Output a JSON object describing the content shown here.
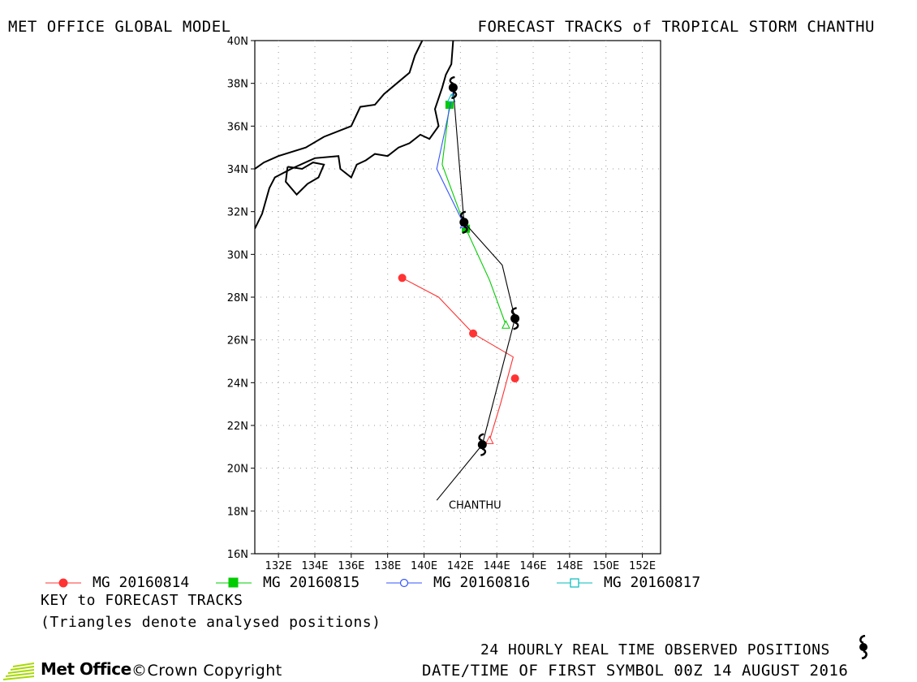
{
  "header": {
    "left_title": "MET OFFICE GLOBAL MODEL",
    "right_title": "FORECAST TRACKS of TROPICAL STORM CHANTHU"
  },
  "map": {
    "lon_range": [
      130.7,
      153.0
    ],
    "lat_range": [
      16,
      40
    ],
    "lon_ticks": [
      "132E",
      "134E",
      "136E",
      "138E",
      "140E",
      "142E",
      "144E",
      "146E",
      "148E",
      "150E",
      "152E"
    ],
    "lon_tick_values": [
      132,
      134,
      136,
      138,
      140,
      142,
      144,
      146,
      148,
      150,
      152
    ],
    "lat_ticks": [
      "16N",
      "18N",
      "20N",
      "22N",
      "24N",
      "26N",
      "28N",
      "30N",
      "32N",
      "34N",
      "36N",
      "38N",
      "40N"
    ],
    "lat_tick_values": [
      16,
      18,
      20,
      22,
      24,
      26,
      28,
      30,
      32,
      34,
      36,
      38,
      40
    ],
    "grid": "dotted",
    "storm_label": "CHANTHU",
    "storm_label_position": [
      142.8,
      18.1
    ],
    "observed_track": [
      [
        140.7,
        18.5
      ],
      [
        143.2,
        21.1
      ],
      [
        145.0,
        27.0
      ],
      [
        144.3,
        29.5
      ],
      [
        142.2,
        31.5
      ],
      [
        141.6,
        37.8
      ]
    ],
    "observed_positions": [
      [
        143.2,
        21.1
      ],
      [
        145.0,
        27.0
      ],
      [
        142.2,
        31.5
      ],
      [
        141.6,
        37.8
      ]
    ],
    "land_coast": [
      [
        [
          130.7,
          31.2
        ],
        [
          131.1,
          31.9
        ],
        [
          131.5,
          33.1
        ],
        [
          131.8,
          33.6
        ],
        [
          132.7,
          34.0
        ],
        [
          134.0,
          34.5
        ],
        [
          135.3,
          34.6
        ],
        [
          135.4,
          34.0
        ],
        [
          136.0,
          33.6
        ],
        [
          136.3,
          34.2
        ],
        [
          136.8,
          34.4
        ],
        [
          137.3,
          34.7
        ],
        [
          138.0,
          34.6
        ],
        [
          138.6,
          35.0
        ],
        [
          139.2,
          35.2
        ],
        [
          139.8,
          35.6
        ],
        [
          140.3,
          35.4
        ],
        [
          140.8,
          36.0
        ],
        [
          140.6,
          36.8
        ],
        [
          141.0,
          37.8
        ],
        [
          141.2,
          38.4
        ],
        [
          141.5,
          38.9
        ],
        [
          141.6,
          40.0
        ]
      ],
      [
        [
          130.7,
          34.0
        ],
        [
          131.2,
          34.3
        ],
        [
          132.0,
          34.6
        ],
        [
          133.5,
          35.0
        ],
        [
          134.5,
          35.5
        ],
        [
          136.0,
          36.0
        ],
        [
          136.5,
          36.9
        ],
        [
          137.3,
          37.0
        ],
        [
          137.8,
          37.5
        ],
        [
          138.5,
          38.0
        ],
        [
          139.2,
          38.5
        ],
        [
          139.5,
          39.3
        ],
        [
          139.9,
          40.0
        ]
      ],
      [
        [
          132.5,
          34.1
        ],
        [
          133.3,
          34.0
        ],
        [
          133.9,
          34.3
        ],
        [
          134.5,
          34.2
        ],
        [
          134.2,
          33.6
        ],
        [
          133.6,
          33.3
        ],
        [
          133.0,
          32.8
        ],
        [
          132.4,
          33.4
        ],
        [
          132.5,
          34.1
        ]
      ]
    ],
    "forecast_tracks": [
      {
        "name": "MG 20160814",
        "color": "#ff3333",
        "marker": "circle-filled",
        "points": [
          [
            143.6,
            21.3
          ],
          [
            144.2,
            23.0
          ],
          [
            144.9,
            25.2
          ],
          [
            142.7,
            26.3
          ],
          [
            140.8,
            28.0
          ],
          [
            138.8,
            28.9
          ]
        ],
        "markers": [
          [
            145.0,
            24.2
          ],
          [
            142.7,
            26.3
          ],
          [
            138.8,
            28.9
          ]
        ]
      },
      {
        "name": "MG 20160815",
        "color": "#00cc00",
        "marker": "square-filled",
        "points": [
          [
            144.5,
            26.7
          ],
          [
            143.6,
            28.8
          ],
          [
            142.3,
            31.2
          ],
          [
            141.0,
            34.2
          ],
          [
            141.4,
            37.0
          ]
        ],
        "markers": [
          [
            142.3,
            31.2
          ],
          [
            141.4,
            37.0
          ]
        ]
      },
      {
        "name": "MG 20160816",
        "color": "#3355ff",
        "marker": "circle-open",
        "points": [
          [
            142.2,
            31.4
          ],
          [
            140.7,
            34.0
          ],
          [
            141.6,
            37.6
          ]
        ],
        "markers": []
      },
      {
        "name": "MG 20160817",
        "color": "#00bbbb",
        "marker": "square-open",
        "points": [
          [
            141.5,
            37.3
          ],
          [
            141.7,
            37.6
          ]
        ],
        "markers": []
      }
    ]
  },
  "legend": {
    "items": [
      {
        "label": "MG 20160814",
        "color": "#ff3333",
        "marker": "circle-filled"
      },
      {
        "label": "MG 20160815",
        "color": "#00cc00",
        "marker": "square-filled"
      },
      {
        "label": "MG 20160816",
        "color": "#3355ff",
        "marker": "circle-open"
      },
      {
        "label": "MG 20160817",
        "color": "#00bbbb",
        "marker": "square-open"
      }
    ],
    "key_title": "KEY to FORECAST TRACKS",
    "key_note": "(Triangles denote analysed positions)"
  },
  "footer": {
    "observed_label": "24 HOURLY REAL TIME OBSERVED POSITIONS",
    "first_symbol": "DATE/TIME OF FIRST SYMBOL 00Z 14 AUGUST 2016",
    "logo_text": "Met Office",
    "copyright": "©Crown Copyright",
    "logo_color": "#a6d800"
  }
}
